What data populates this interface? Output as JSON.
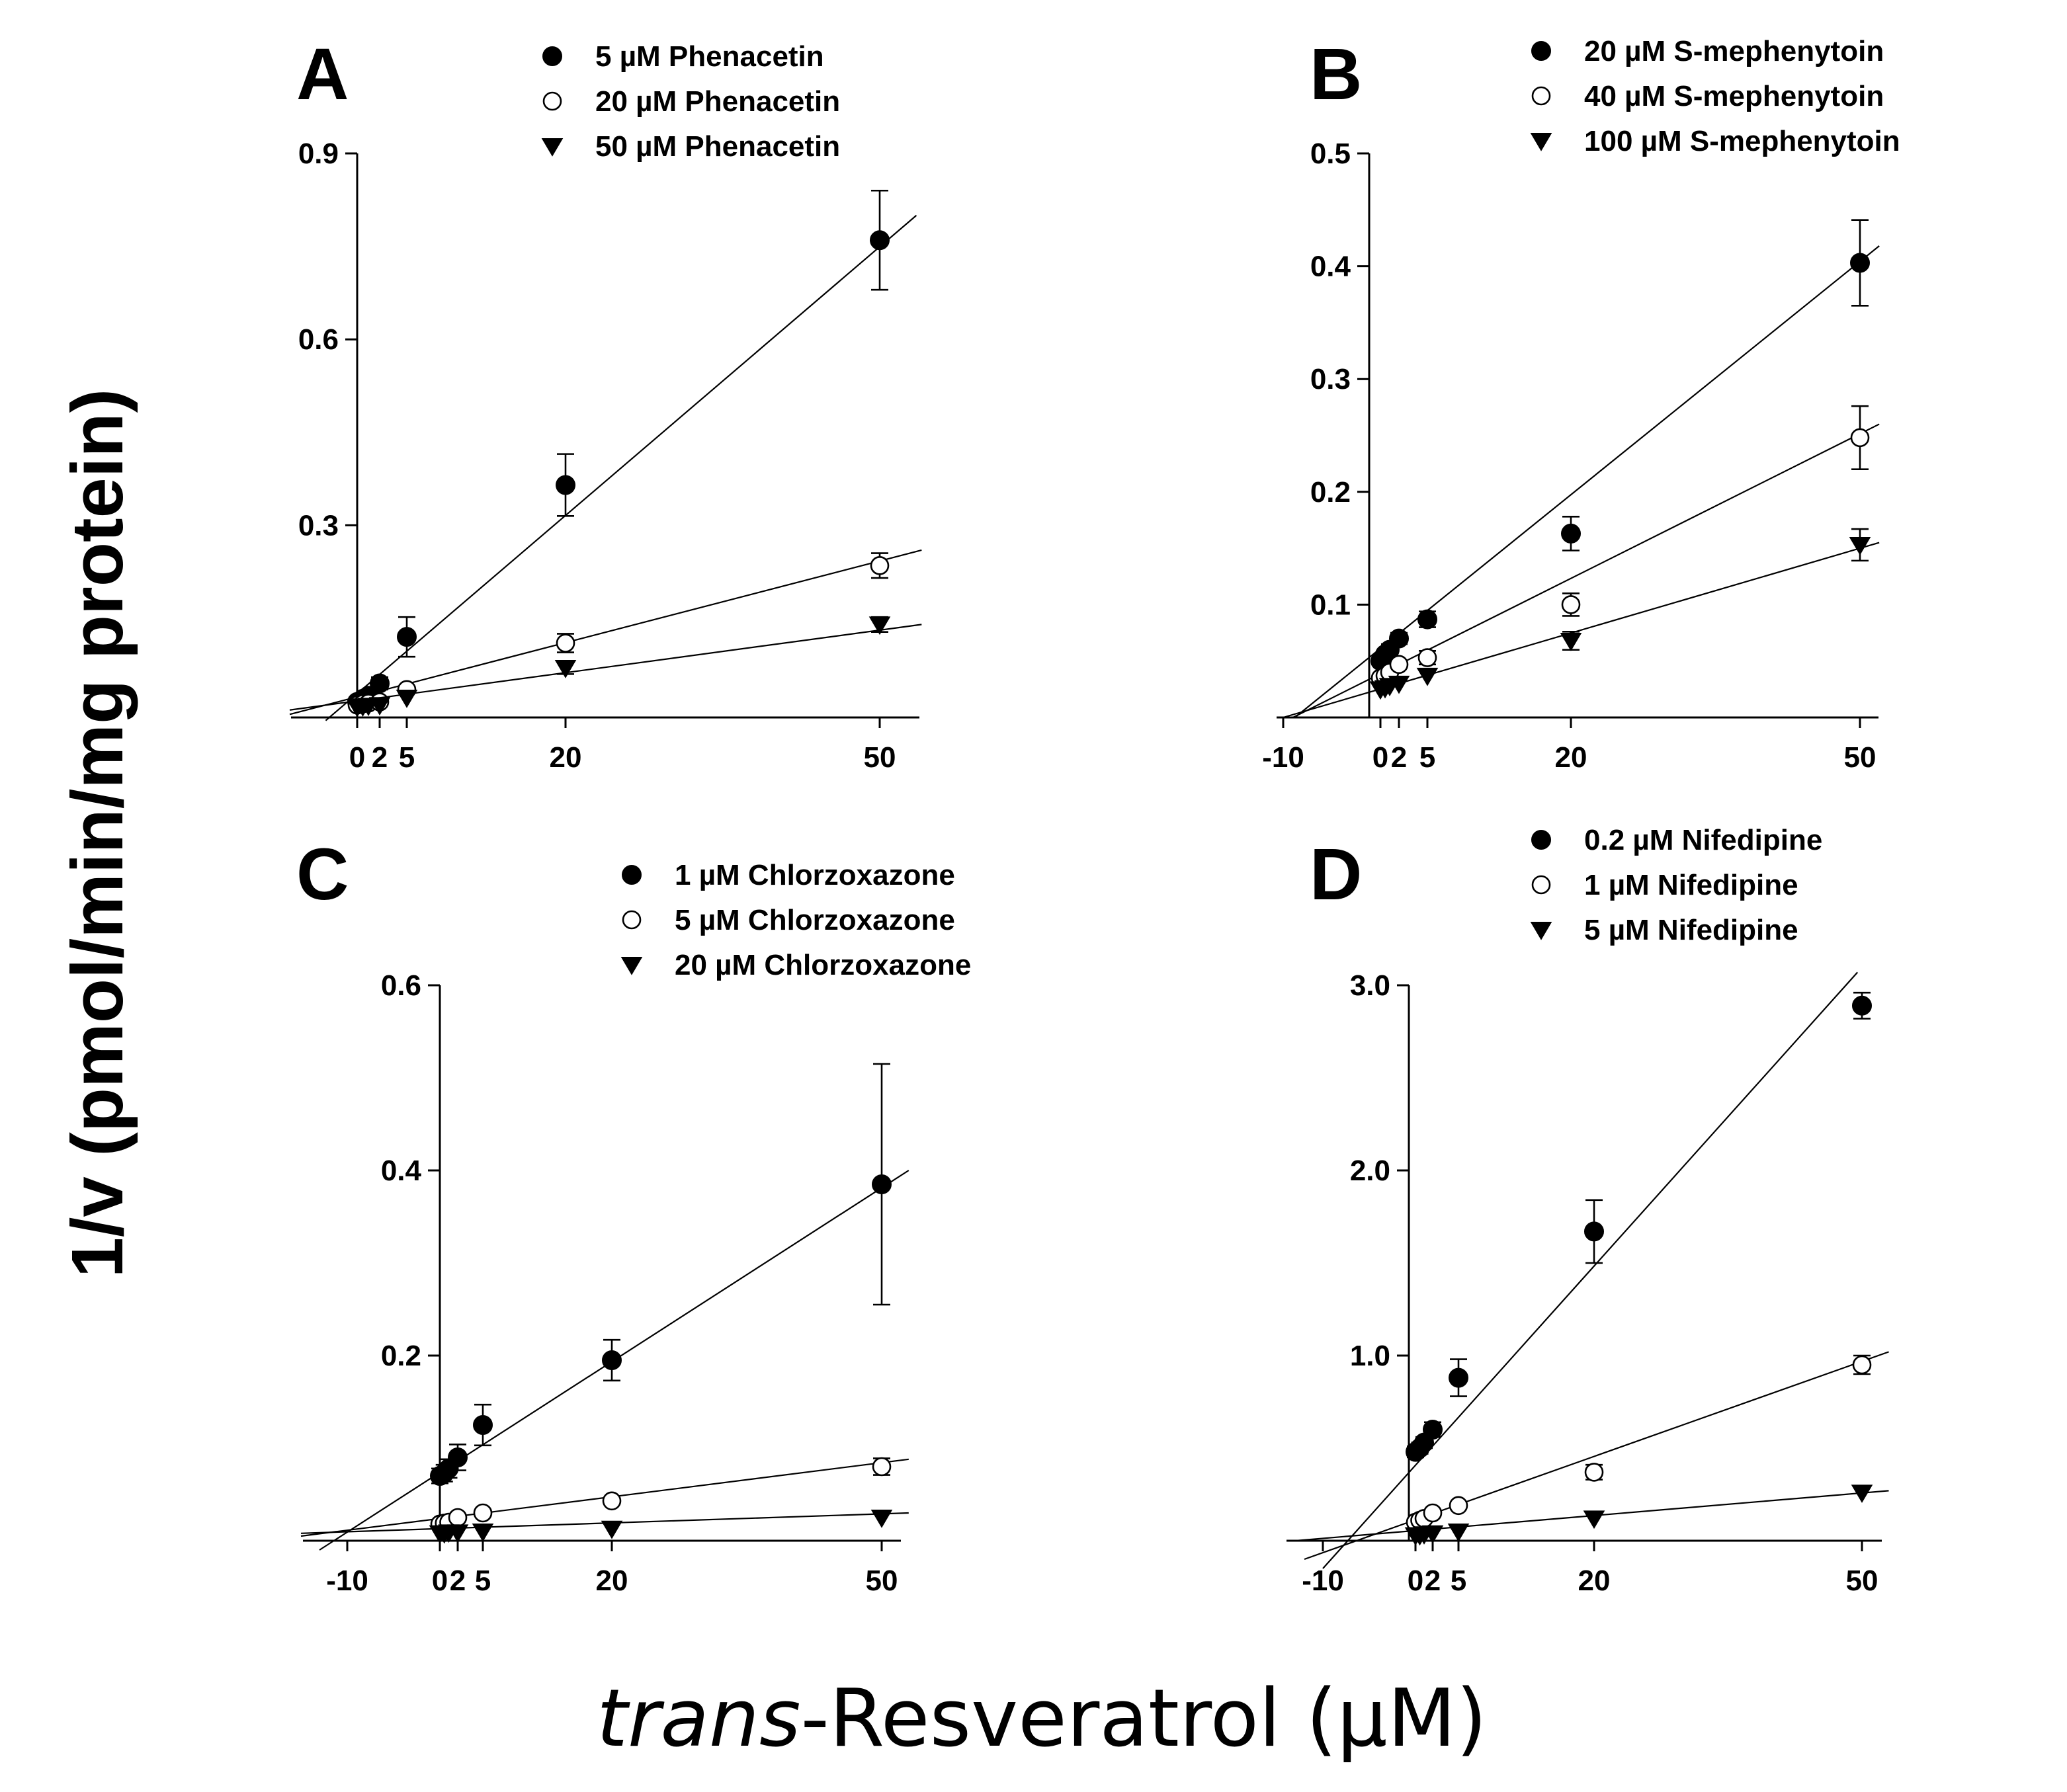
{
  "figure": {
    "ylabel": "1/v (pmol/min/mg protein)",
    "xlabel_italic": "trans",
    "xlabel_rest": "-Resveratrol  (µM)"
  },
  "chart_data": [
    {
      "panel": "A",
      "type": "scatter",
      "xlabel": "trans-Resveratrol (µM)",
      "ylabel": "1/v (pmol/min/mg protein)",
      "xlim": [
        -5,
        55
      ],
      "ylim": [
        -0.01,
        0.9
      ],
      "xticks": [
        0,
        2,
        5,
        20,
        50
      ],
      "xtick_labels": [
        "0",
        "2",
        "5",
        "20",
        "50"
      ],
      "yticks": [
        0.3,
        0.6,
        0.9
      ],
      "ytick_labels": [
        "0.3",
        "0.6",
        "0.9"
      ],
      "legend_position": "top-right",
      "series": [
        {
          "name": "5 µM Phenacetin",
          "marker": "filled-circle",
          "x": [
            0,
            0.5,
            1,
            2,
            5,
            20,
            50
          ],
          "y": [
            0.015,
            0.02,
            0.025,
            0.045,
            0.12,
            0.365,
            0.76
          ],
          "err": [
            0.005,
            0.005,
            0.006,
            0.01,
            0.032,
            0.05,
            0.08
          ],
          "fit": [
            [
              -2.8,
              -0.015
            ],
            [
              53.5,
              0.8
            ]
          ]
        },
        {
          "name": "20 µM Phenacetin",
          "marker": "open-circle",
          "x": [
            0,
            0.5,
            1,
            2,
            5,
            20,
            50
          ],
          "y": [
            0.01,
            0.012,
            0.013,
            0.015,
            0.035,
            0.11,
            0.235
          ],
          "err": [
            0.003,
            0.003,
            0.003,
            0.004,
            0.006,
            0.015,
            0.02
          ],
          "fit": [
            [
              -6,
              -0.005
            ],
            [
              54,
              0.26
            ]
          ]
        },
        {
          "name": "50 µM Phenacetin",
          "marker": "filled-triangle-down",
          "x": [
            0,
            0.5,
            1,
            2,
            5,
            20,
            50
          ],
          "y": [
            0.007,
            0.008,
            0.009,
            0.01,
            0.022,
            0.07,
            0.14
          ],
          "err": [
            0.002,
            0.002,
            0.002,
            0.003,
            0.004,
            0.01,
            0.012
          ],
          "fit": [
            [
              -6,
              0.002
            ],
            [
              54,
              0.14
            ]
          ]
        }
      ]
    },
    {
      "panel": "B",
      "type": "scatter",
      "xlabel": "trans-Resveratrol (µM)",
      "ylabel": "1/v (pmol/min/mg protein)",
      "xlim": [
        -12,
        52
      ],
      "ylim": [
        0,
        0.5
      ],
      "xticks": [
        -10,
        0,
        2,
        5,
        20,
        50
      ],
      "xtick_labels": [
        "-10",
        "0",
        "2",
        "5",
        "20",
        "50"
      ],
      "yticks": [
        0.1,
        0.2,
        0.3,
        0.4,
        0.5
      ],
      "ytick_labels": [
        "0.1",
        "0.2",
        "0.3",
        "0.4",
        "0.5"
      ],
      "legend_position": "top-right",
      "series": [
        {
          "name": "20 µM S-mephenytoin",
          "marker": "filled-circle",
          "x": [
            0,
            0.5,
            1,
            2,
            5,
            20,
            50
          ],
          "y": [
            0.05,
            0.056,
            0.06,
            0.07,
            0.087,
            0.163,
            0.403
          ],
          "err": [
            0.004,
            0.004,
            0.005,
            0.005,
            0.007,
            0.015,
            0.038
          ],
          "fit": [
            [
              -8.8,
              0
            ],
            [
              52,
              0.418
            ]
          ]
        },
        {
          "name": "40 µM S-mephenytoin",
          "marker": "open-circle",
          "x": [
            0,
            0.5,
            1,
            2,
            5,
            20,
            50
          ],
          "y": [
            0.035,
            0.037,
            0.04,
            0.047,
            0.053,
            0.1,
            0.248
          ],
          "err": [
            0.003,
            0.003,
            0.004,
            0.004,
            0.006,
            0.01,
            0.028
          ],
          "fit": [
            [
              -9,
              0
            ],
            [
              52,
              0.26
            ]
          ]
        },
        {
          "name": "100 µM S-mephenytoin",
          "marker": "filled-triangle-down",
          "x": [
            0,
            0.5,
            1,
            2,
            5,
            20,
            50
          ],
          "y": [
            0.025,
            0.026,
            0.028,
            0.03,
            0.037,
            0.068,
            0.153
          ],
          "err": [
            0.002,
            0.002,
            0.003,
            0.003,
            0.004,
            0.008,
            0.014
          ],
          "fit": [
            [
              -10,
              0
            ],
            [
              52,
              0.155
            ]
          ]
        }
      ]
    },
    {
      "panel": "C",
      "type": "scatter",
      "xlabel": "trans-Resveratrol (µM)",
      "ylabel": "1/v (pmol/min/mg protein)",
      "xlim": [
        -15,
        53
      ],
      "ylim": [
        0,
        0.6
      ],
      "xticks": [
        -10,
        0,
        2,
        5,
        20,
        50
      ],
      "xtick_labels": [
        "-10",
        "0",
        "2",
        "5",
        "20",
        "50"
      ],
      "yticks": [
        0.2,
        0.4,
        0.6
      ],
      "ytick_labels": [
        "0.2",
        "0.4",
        "0.6"
      ],
      "legend_position": "top-right",
      "series": [
        {
          "name": "1 µM Chlorzoxazone",
          "marker": "filled-circle",
          "x": [
            0,
            0.5,
            1,
            2,
            5,
            20,
            50
          ],
          "y": [
            0.07,
            0.073,
            0.078,
            0.09,
            0.125,
            0.195,
            0.385
          ],
          "err": [
            0.008,
            0.009,
            0.01,
            0.014,
            0.022,
            0.022,
            0.13
          ],
          "fit": [
            [
              -13,
              -0.01
            ],
            [
              53,
              0.4
            ]
          ]
        },
        {
          "name": "5 µM Chlorzoxazone",
          "marker": "open-circle",
          "x": [
            0,
            0.5,
            1,
            2,
            5,
            20,
            50
          ],
          "y": [
            0.018,
            0.019,
            0.02,
            0.025,
            0.03,
            0.043,
            0.08
          ],
          "err": [
            0.003,
            0.003,
            0.003,
            0.003,
            0.004,
            0.005,
            0.009
          ],
          "fit": [
            [
              -15,
              0.005
            ],
            [
              53,
              0.088
            ]
          ]
        },
        {
          "name": "20 µM Chlorzoxazone",
          "marker": "filled-triangle-down",
          "x": [
            0,
            0.5,
            1,
            2,
            5,
            20,
            50
          ],
          "y": [
            0.008,
            0.008,
            0.009,
            0.009,
            0.01,
            0.013,
            0.025
          ],
          "err": [
            0.002,
            0.002,
            0.002,
            0.002,
            0.002,
            0.003,
            0.004
          ],
          "fit": [
            [
              -15,
              0.008
            ],
            [
              53,
              0.03
            ]
          ]
        }
      ]
    },
    {
      "panel": "D",
      "type": "scatter",
      "xlabel": "trans-Resveratrol (µM)",
      "ylabel": "1/v (pmol/min/mg protein)",
      "xlim": [
        -13,
        52
      ],
      "ylim": [
        0,
        3.0
      ],
      "xticks": [
        -10,
        0,
        2,
        5,
        20,
        50
      ],
      "xtick_labels": [
        "-10",
        "0",
        "2",
        "5",
        "20",
        "50"
      ],
      "yticks": [
        1.0,
        2.0,
        3.0
      ],
      "ytick_labels": [
        "1.0",
        "2.0",
        "3.0"
      ],
      "legend_position": "top-right",
      "series": [
        {
          "name": "0.2 µM Nifedipine",
          "marker": "filled-circle",
          "x": [
            0,
            0.5,
            1,
            2,
            5,
            20,
            50
          ],
          "y": [
            0.48,
            0.5,
            0.53,
            0.6,
            0.88,
            1.67,
            2.89
          ],
          "err": [
            0.03,
            0.03,
            0.03,
            0.04,
            0.1,
            0.17,
            0.07
          ],
          "fit": [
            [
              -10,
              -0.15
            ],
            [
              49.5,
              3.07
            ]
          ]
        },
        {
          "name": "1 µM Nifedipine",
          "marker": "open-circle",
          "x": [
            0,
            0.5,
            1,
            2,
            5,
            20,
            50
          ],
          "y": [
            0.1,
            0.11,
            0.12,
            0.15,
            0.19,
            0.37,
            0.95
          ],
          "err": [
            0.01,
            0.01,
            0.01,
            0.01,
            0.02,
            0.04,
            0.05
          ],
          "fit": [
            [
              -12,
              -0.1
            ],
            [
              53,
              1.02
            ]
          ]
        },
        {
          "name": "5 µM Nifedipine",
          "marker": "filled-triangle-down",
          "x": [
            0,
            0.5,
            1,
            2,
            5,
            20,
            50
          ],
          "y": [
            0.03,
            0.03,
            0.035,
            0.04,
            0.05,
            0.12,
            0.26
          ],
          "err": [
            0.005,
            0.005,
            0.005,
            0.005,
            0.008,
            0.01,
            0.02
          ],
          "fit": [
            [
              -13,
              0.0
            ],
            [
              53,
              0.27
            ]
          ]
        }
      ]
    }
  ]
}
